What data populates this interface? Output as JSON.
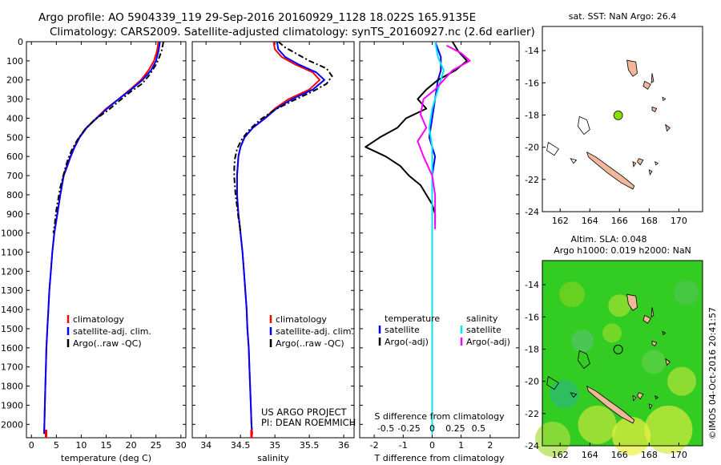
{
  "header": {
    "line1": "Argo profile: AO 5904339_119 29-Sep-2016 20160929_1128 18.022S 165.9135E",
    "line2": "Climatology: CARS2009. Satellite-adjusted climatology: synTS_20160927.nc (2.6d earlier)"
  },
  "colors": {
    "climatology": "#ff0000",
    "satellite": "#0000ff",
    "argo": "#000000",
    "salinity_sat": "#00e5ee",
    "salinity_argo": "#ff00ff",
    "land": "#f0b898",
    "float_marker": "#88e000",
    "sla_field": "#33cc22"
  },
  "credits": {
    "project": "US ARGO PROJECT",
    "pi": "PI: DEAN ROEMMICH",
    "watermark": "©IMOS 04-Oct-2016 20:41:57"
  },
  "chart_data": [
    {
      "id": "temperature",
      "type": "line",
      "xlabel": "temperature (deg C)",
      "ylabel": "",
      "xlim": [
        -1,
        31
      ],
      "ylim": [
        2070,
        0
      ],
      "xticks": [
        0,
        5,
        10,
        15,
        20,
        25,
        30
      ],
      "yticks": [
        0,
        100,
        200,
        300,
        400,
        500,
        600,
        700,
        800,
        900,
        1000,
        1100,
        1200,
        1300,
        1400,
        1500,
        1600,
        1700,
        1800,
        1900,
        2000
      ],
      "legend": [
        "climatology",
        "satellite-adj. clim.",
        "Argo(..raw -QC)"
      ],
      "series": [
        {
          "name": "climatology",
          "color": "#ff0000",
          "points": [
            [
              25.5,
              0
            ],
            [
              25.2,
              50
            ],
            [
              24.6,
              100
            ],
            [
              23.5,
              150
            ],
            [
              22,
              200
            ],
            [
              19.8,
              250
            ],
            [
              17.5,
              300
            ],
            [
              15,
              350
            ],
            [
              13,
              400
            ],
            [
              11,
              450
            ],
            [
              9.6,
              500
            ],
            [
              8.6,
              550
            ],
            [
              7.8,
              600
            ],
            [
              7.1,
              650
            ],
            [
              6.4,
              700
            ],
            [
              5.8,
              800
            ],
            [
              5.2,
              900
            ],
            [
              4.6,
              1000
            ],
            [
              4.2,
              1100
            ],
            [
              3.9,
              1200
            ],
            [
              3.6,
              1300
            ],
            [
              3.4,
              1400
            ],
            [
              3.2,
              1500
            ],
            [
              3,
              1600
            ],
            [
              2.9,
              1700
            ],
            [
              2.8,
              1800
            ],
            [
              2.7,
              1900
            ],
            [
              2.6,
              2000
            ],
            [
              2.55,
              2050
            ]
          ]
        },
        {
          "name": "satellite-adj. clim.",
          "color": "#0000ff",
          "points": [
            [
              25.8,
              0
            ],
            [
              25.5,
              50
            ],
            [
              25,
              100
            ],
            [
              24,
              150
            ],
            [
              22.3,
              200
            ],
            [
              20,
              250
            ],
            [
              17.5,
              300
            ],
            [
              15.2,
              350
            ],
            [
              13.1,
              400
            ],
            [
              11.1,
              450
            ],
            [
              9.7,
              500
            ],
            [
              8.7,
              550
            ],
            [
              7.9,
              600
            ],
            [
              7.2,
              650
            ],
            [
              6.5,
              700
            ],
            [
              5.8,
              800
            ],
            [
              5.2,
              900
            ],
            [
              4.6,
              1000
            ],
            [
              4.2,
              1100
            ],
            [
              3.9,
              1200
            ],
            [
              3.6,
              1300
            ],
            [
              3.4,
              1400
            ],
            [
              3.2,
              1500
            ],
            [
              3,
              1600
            ],
            [
              2.9,
              1700
            ],
            [
              2.8,
              1800
            ],
            [
              2.7,
              1900
            ],
            [
              2.6,
              2000
            ],
            [
              2.55,
              2050
            ]
          ]
        },
        {
          "name": "Argo(..raw -QC)",
          "color": "#000000",
          "points": [
            [
              26.5,
              0
            ],
            [
              26.2,
              40
            ],
            [
              25.7,
              80
            ],
            [
              25,
              120
            ],
            [
              23.8,
              170
            ],
            [
              22.2,
              220
            ],
            [
              20,
              260
            ],
            [
              17.6,
              310
            ],
            [
              15.3,
              360
            ],
            [
              12.6,
              410
            ],
            [
              10.7,
              460
            ],
            [
              9.3,
              510
            ],
            [
              8.2,
              560
            ],
            [
              7.4,
              610
            ],
            [
              6.8,
              660
            ],
            [
              6.3,
              710
            ],
            [
              5.8,
              760
            ],
            [
              5.4,
              820
            ],
            [
              5,
              880
            ],
            [
              4.7,
              950
            ],
            [
              4.4,
              1000
            ]
          ]
        }
      ]
    },
    {
      "id": "salinity",
      "type": "line",
      "xlabel": "salinity",
      "ylabel": "",
      "xlim": [
        33.8,
        36.15
      ],
      "ylim": [
        2070,
        0
      ],
      "xticks": [
        34,
        34.5,
        35,
        35.5,
        36
      ],
      "xtick_labels": [
        "34",
        "34.5",
        "35",
        "35.5",
        "36"
      ],
      "legend": [
        "climatology",
        "satellite-adj. clim.",
        "Argo(..raw -QC)"
      ],
      "series": [
        {
          "name": "climatology",
          "color": "#ff0000",
          "points": [
            [
              34.98,
              0
            ],
            [
              35,
              40
            ],
            [
              35.1,
              80
            ],
            [
              35.3,
              120
            ],
            [
              35.55,
              160
            ],
            [
              35.65,
              200
            ],
            [
              35.5,
              250
            ],
            [
              35.2,
              300
            ],
            [
              35,
              350
            ],
            [
              34.85,
              400
            ],
            [
              34.68,
              450
            ],
            [
              34.56,
              500
            ],
            [
              34.5,
              550
            ],
            [
              34.47,
              600
            ],
            [
              34.45,
              700
            ],
            [
              34.45,
              800
            ],
            [
              34.47,
              900
            ],
            [
              34.5,
              1000
            ],
            [
              34.53,
              1100
            ],
            [
              34.55,
              1200
            ],
            [
              34.57,
              1300
            ],
            [
              34.59,
              1400
            ],
            [
              34.6,
              1500
            ],
            [
              34.62,
              1600
            ],
            [
              34.63,
              1700
            ],
            [
              34.64,
              1800
            ],
            [
              34.65,
              1900
            ],
            [
              34.66,
              2000
            ],
            [
              34.67,
              2050
            ]
          ]
        },
        {
          "name": "satellite-adj. clim.",
          "color": "#0000ff",
          "points": [
            [
              35.03,
              0
            ],
            [
              35.05,
              40
            ],
            [
              35.15,
              80
            ],
            [
              35.35,
              120
            ],
            [
              35.6,
              160
            ],
            [
              35.72,
              200
            ],
            [
              35.55,
              250
            ],
            [
              35.25,
              300
            ],
            [
              35.02,
              350
            ],
            [
              34.86,
              400
            ],
            [
              34.68,
              450
            ],
            [
              34.56,
              500
            ],
            [
              34.5,
              550
            ],
            [
              34.47,
              600
            ],
            [
              34.45,
              700
            ],
            [
              34.45,
              800
            ],
            [
              34.47,
              900
            ],
            [
              34.5,
              1000
            ],
            [
              34.53,
              1100
            ],
            [
              34.55,
              1200
            ],
            [
              34.57,
              1300
            ],
            [
              34.59,
              1400
            ],
            [
              34.6,
              1500
            ],
            [
              34.62,
              1600
            ],
            [
              34.63,
              1700
            ],
            [
              34.64,
              1800
            ],
            [
              34.65,
              1900
            ],
            [
              34.66,
              2000
            ],
            [
              34.67,
              2050
            ]
          ]
        },
        {
          "name": "Argo(..raw -QC)",
          "color": "#000000",
          "points": [
            [
              35.05,
              0
            ],
            [
              35.15,
              30
            ],
            [
              35.35,
              70
            ],
            [
              35.5,
              100
            ],
            [
              35.75,
              140
            ],
            [
              35.83,
              180
            ],
            [
              35.75,
              220
            ],
            [
              35.55,
              260
            ],
            [
              35.25,
              310
            ],
            [
              34.98,
              360
            ],
            [
              34.78,
              410
            ],
            [
              34.63,
              460
            ],
            [
              34.52,
              510
            ],
            [
              34.45,
              560
            ],
            [
              34.42,
              610
            ],
            [
              34.41,
              660
            ],
            [
              34.41,
              710
            ],
            [
              34.42,
              760
            ],
            [
              34.43,
              810
            ],
            [
              34.45,
              860
            ],
            [
              34.47,
              920
            ],
            [
              34.49,
              960
            ],
            [
              34.5,
              1000
            ]
          ]
        }
      ]
    },
    {
      "id": "difference",
      "type": "line",
      "xlabel": "T difference from climatology",
      "xlabel_top": "S difference from climatology",
      "ylabel": "",
      "xlim": [
        -2.5,
        3
      ],
      "ylim": [
        2070,
        0
      ],
      "xticks": [
        -2,
        -1,
        0,
        1,
        2
      ],
      "top_tick_labels": [
        "-0.5",
        "-0.25",
        "0",
        "0.25",
        "0.5"
      ],
      "legend_left_title": "temperature",
      "legend_right_title": "salinity",
      "legend": [
        "satellite",
        "Argo(-adj)",
        "satellite",
        "Argo(-adj)"
      ],
      "series": [
        {
          "name": "temperature satellite",
          "color": "#0000ff",
          "points": [
            [
              0.1,
              0
            ],
            [
              0.3,
              80
            ],
            [
              0.3,
              150
            ],
            [
              0.2,
              200
            ],
            [
              0.1,
              300
            ],
            [
              0,
              400
            ],
            [
              -0.1,
              500
            ],
            [
              0.1,
              600
            ],
            [
              0,
              700
            ],
            [
              0,
              800
            ],
            [
              0,
              1000
            ],
            [
              0,
              1500
            ],
            [
              0,
              2050
            ]
          ]
        },
        {
          "name": "temperature Argo(-adj)",
          "color": "#000000",
          "points": [
            [
              0.7,
              0
            ],
            [
              0.9,
              50
            ],
            [
              1.2,
              100
            ],
            [
              0.8,
              150
            ],
            [
              0.2,
              200
            ],
            [
              -0.2,
              250
            ],
            [
              -0.5,
              300
            ],
            [
              -0.2,
              350
            ],
            [
              -0.9,
              400
            ],
            [
              -1.2,
              450
            ],
            [
              -1.8,
              500
            ],
            [
              -2.3,
              550
            ],
            [
              -1.6,
              600
            ],
            [
              -1.1,
              650
            ],
            [
              -0.8,
              700
            ],
            [
              -0.4,
              750
            ],
            [
              -0.2,
              800
            ],
            [
              0,
              850
            ],
            [
              0.1,
              900
            ],
            [
              0.1,
              950
            ]
          ]
        },
        {
          "name": "salinity satellite",
          "color": "#00e5ee",
          "points": [
            [
              0.1,
              0
            ],
            [
              0.2,
              80
            ],
            [
              0.4,
              150
            ],
            [
              0.2,
              250
            ],
            [
              0,
              350
            ],
            [
              -0.1,
              450
            ],
            [
              0,
              550
            ],
            [
              0,
              700
            ],
            [
              0,
              1000
            ],
            [
              0,
              1500
            ],
            [
              0,
              2050
            ]
          ]
        },
        {
          "name": "salinity Argo(-adj)",
          "color": "#ff00ff",
          "points": [
            [
              0.5,
              20
            ],
            [
              1,
              60
            ],
            [
              1.3,
              100
            ],
            [
              0.7,
              150
            ],
            [
              0.4,
              200
            ],
            [
              0.1,
              250
            ],
            [
              -0.3,
              300
            ],
            [
              -0.4,
              380
            ],
            [
              -0.2,
              450
            ],
            [
              -0.5,
              520
            ],
            [
              -0.3,
              600
            ],
            [
              0,
              700
            ],
            [
              0.1,
              800
            ],
            [
              0.1,
              900
            ],
            [
              0.1,
              980
            ]
          ]
        }
      ]
    },
    {
      "id": "map_sst",
      "type": "scatter",
      "title": "sat. SST: NaN Argo: 26.4",
      "xlim": [
        160.8,
        171.6
      ],
      "ylim": [
        -24,
        -12.5
      ],
      "xticks": [
        162,
        164,
        166,
        168,
        170
      ],
      "yticks": [
        -14,
        -16,
        -18,
        -20,
        -22,
        -24
      ],
      "float_position": [
        165.91,
        -18.02
      ]
    },
    {
      "id": "map_sla",
      "type": "heatmap",
      "title_line1": "Altim. SLA: 0.048",
      "title_line2": "Argo h1000: 0.019 h2000: NaN",
      "xlim": [
        160.8,
        171.6
      ],
      "ylim": [
        -24,
        -12.5
      ],
      "xticks": [
        162,
        164,
        166,
        168,
        170
      ],
      "yticks": [
        -14,
        -16,
        -18,
        -20,
        -22,
        -24
      ],
      "float_position": [
        165.91,
        -18.02
      ]
    }
  ]
}
